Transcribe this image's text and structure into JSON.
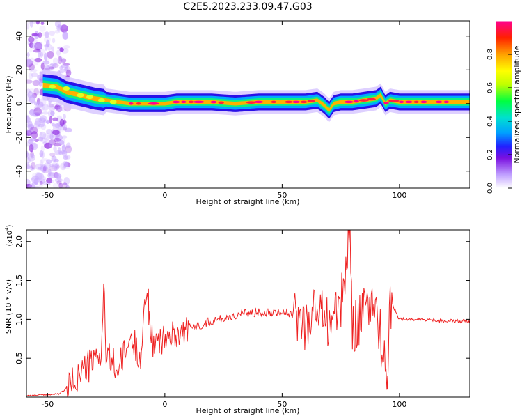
{
  "title": "C2E5.2023.233.09.47.G03",
  "chart_data": [
    {
      "type": "heatmap",
      "xlabel": "Height of straight line (km)",
      "ylabel": "Frequency (Hz)",
      "xlim": [
        -59,
        130
      ],
      "ylim": [
        -50,
        49
      ],
      "xticks": [
        -50,
        0,
        50,
        100
      ],
      "yticks": [
        -40,
        -20,
        0,
        20,
        40
      ],
      "colorbar": {
        "label": "Normalized spectral amplitude",
        "range": [
          0,
          1
        ],
        "ticks": [
          "0.0",
          "0.2",
          "0.4",
          "0.6",
          "0.8"
        ],
        "colors": [
          "#ffffff",
          "#c0a0ff",
          "#7a10e0",
          "#2020ff",
          "#00a0ff",
          "#00e0d0",
          "#00ff40",
          "#c0ff00",
          "#ffff00",
          "#ffa000",
          "#ff2000",
          "#ff0090"
        ]
      },
      "ridge": {
        "x": [
          -52,
          -46,
          -42,
          -36,
          -30,
          -25,
          -20,
          -15,
          -10,
          -5,
          0,
          5,
          10,
          20,
          30,
          40,
          50,
          60,
          65,
          68,
          70,
          72,
          75,
          80,
          85,
          90,
          92,
          94,
          96,
          100,
          110,
          120,
          130
        ],
        "frequency": [
          11,
          10,
          7,
          5,
          3,
          2,
          1,
          0,
          0,
          0,
          0,
          1,
          1,
          1,
          0,
          1,
          1,
          1,
          2,
          -1,
          -4,
          0,
          1,
          1,
          2,
          3,
          5,
          0,
          2,
          1,
          1,
          1,
          1
        ]
      }
    },
    {
      "type": "line",
      "xlabel": "Height of straight line (km)",
      "ylabel": "SNR (10 * v/v)",
      "yscale_label": "(x10",
      "yscale_exp": "4",
      "yscale_close": ")",
      "xlim": [
        -59,
        130
      ],
      "ylim": [
        0,
        2.15
      ],
      "xticks": [
        -50,
        0,
        50,
        100
      ],
      "yticks": [
        "0.5",
        "1.0",
        "1.5",
        "2.0"
      ],
      "color": "#ee2222",
      "x": [
        -59,
        -50,
        -45,
        -40,
        -35,
        -30,
        -27,
        -26,
        -25,
        -22,
        -20,
        -17,
        -15,
        -10,
        -8,
        -5,
        0,
        5,
        10,
        20,
        30,
        40,
        50,
        55,
        60,
        65,
        70,
        75,
        79,
        80,
        85,
        90,
        95,
        96,
        100,
        110,
        120,
        130
      ],
      "y": [
        0.02,
        0.03,
        0.04,
        0.15,
        0.35,
        0.45,
        0.6,
        1.46,
        0.5,
        0.45,
        0.35,
        0.55,
        0.75,
        0.55,
        1.38,
        0.65,
        0.75,
        0.82,
        0.88,
        0.98,
        1.05,
        1.1,
        1.1,
        1.05,
        0.95,
        1.15,
        0.98,
        1.15,
        2.15,
        0.9,
        1.1,
        1.2,
        0.1,
        1.25,
        1.0,
        1.0,
        0.98,
        0.97
      ],
      "series": [
        {
          "peaks": [
            {
              "x": -26,
              "y": 1.46
            },
            {
              "x": -7,
              "y": 1.39
            },
            {
              "x": 79,
              "y": 2.15
            },
            {
              "x": 95,
              "y": 0.1
            }
          ]
        }
      ]
    }
  ]
}
